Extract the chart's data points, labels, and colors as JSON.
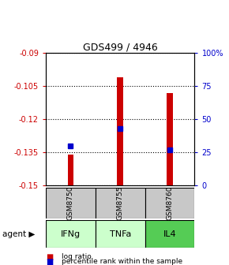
{
  "title": "GDS499 / 4946",
  "samples": [
    "GSM8750",
    "GSM8755",
    "GSM8760"
  ],
  "agents": [
    "IFNg",
    "TNFa",
    "IL4"
  ],
  "bar_bottoms": [
    -0.15,
    -0.15,
    -0.15
  ],
  "bar_tops": [
    -0.136,
    -0.101,
    -0.108
  ],
  "percentile_values": [
    0.3,
    0.43,
    0.27
  ],
  "ylim_left": [
    -0.15,
    -0.09
  ],
  "yticks_left": [
    -0.15,
    -0.135,
    -0.12,
    -0.105,
    -0.09
  ],
  "ytick_labels_left": [
    "-0.15",
    "-0.135",
    "-0.12",
    "-0.105",
    "-0.09"
  ],
  "ylim_right": [
    0,
    100
  ],
  "yticks_right": [
    0,
    25,
    50,
    75,
    100
  ],
  "ytick_labels_right": [
    "0",
    "25",
    "50",
    "75",
    "100%"
  ],
  "bar_color": "#cc0000",
  "blue_color": "#0000cc",
  "agent_colors": [
    "#ccffcc",
    "#ccffcc",
    "#55cc55"
  ],
  "sample_bg_color": "#c8c8c8",
  "left_axis_color": "#cc0000",
  "right_axis_color": "#0000cc",
  "legend_bar_label": "log ratio",
  "legend_blue_label": "percentile rank within the sample",
  "agent_label": "agent"
}
